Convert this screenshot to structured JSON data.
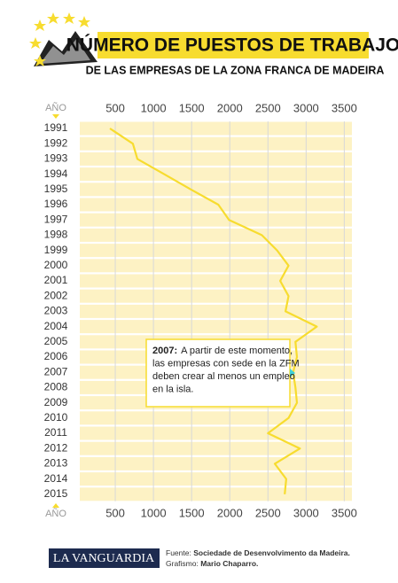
{
  "chart_data": {
    "type": "line",
    "orientation": "horizontal",
    "title": "NÚMERO DE PUESTOS DE TRABAJO",
    "subtitle": "DE LAS EMPRESAS DE LA ZONA FRANCA DE MADEIRA",
    "axis_label": "AÑO",
    "categories": [
      "1991",
      "1992",
      "1993",
      "1994",
      "1995",
      "1996",
      "1997",
      "1998",
      "1999",
      "2000",
      "2001",
      "2002",
      "2003",
      "2004",
      "2005",
      "2006",
      "2007",
      "2008",
      "2009",
      "2010",
      "2011",
      "2012",
      "2013",
      "2014",
      "2015"
    ],
    "values": [
      430,
      730,
      790,
      1140,
      1490,
      1850,
      1990,
      2420,
      2620,
      2770,
      2660,
      2770,
      2730,
      3140,
      2860,
      2880,
      2830,
      2860,
      2880,
      2770,
      2500,
      2920,
      2590,
      2740,
      2720
    ],
    "color": "#f7dc2f",
    "xlim": [
      0,
      3600
    ],
    "xticks": [
      500,
      1000,
      1500,
      2000,
      2500,
      3000,
      3500
    ],
    "grid": true,
    "annotation": {
      "label": "2007:",
      "lines": [
        "A partir de este momento,",
        "las empresas con sede en la ZFM",
        "deben crear al menos un empleo",
        "en la isla."
      ]
    }
  },
  "footer": {
    "logo": "LA VANGUARDIA",
    "source_label": "Fuente:",
    "source": "Sociedade de Desenvolvimento da Madeira.",
    "credit_label": "Grafismo:",
    "credit": "Mario Chaparro."
  }
}
